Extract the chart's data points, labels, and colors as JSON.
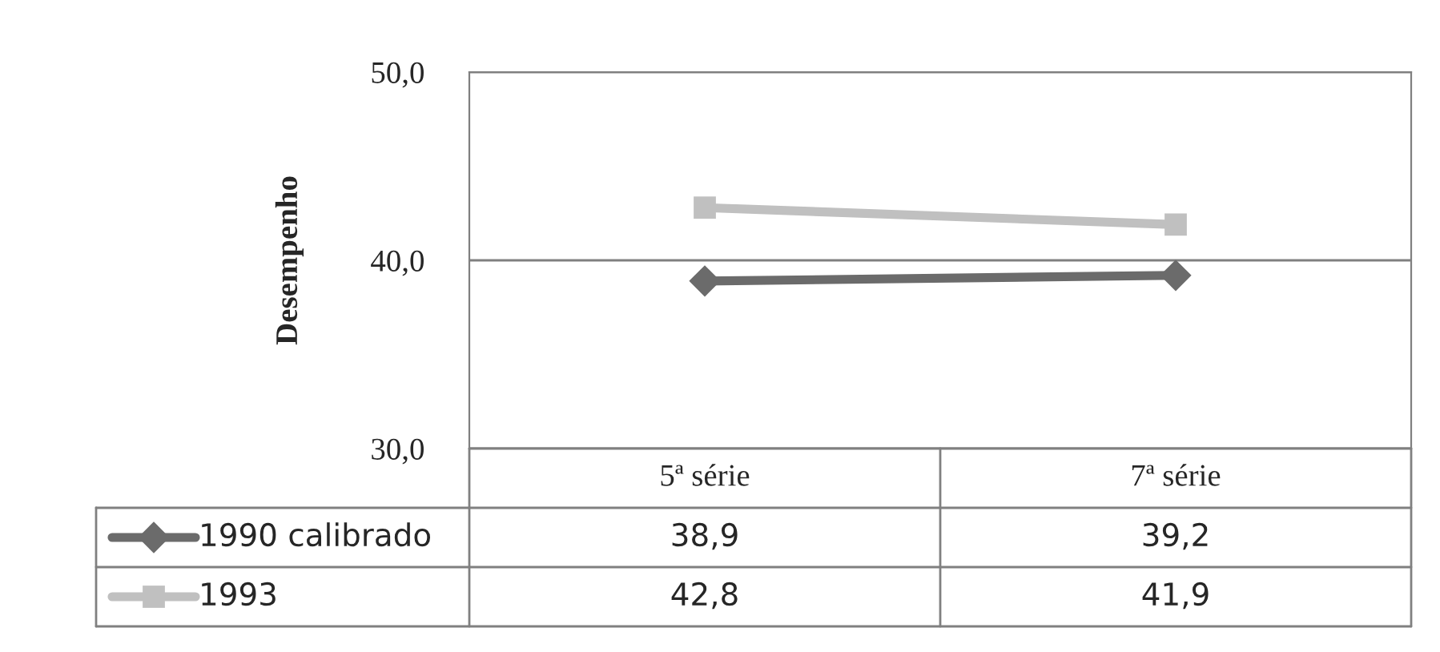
{
  "chart_data": {
    "type": "line",
    "ylabel": "Desempenho",
    "categories": [
      "5ª série",
      "7ª série"
    ],
    "series": [
      {
        "name": "1990 calibrado",
        "color": "#6b6b6b",
        "marker": "diamond",
        "values": [
          38.9,
          39.2
        ],
        "value_labels": [
          "38,9",
          "39,2"
        ]
      },
      {
        "name": "1993",
        "color": "#c0c0c0",
        "marker": "square",
        "values": [
          42.8,
          41.9
        ],
        "value_labels": [
          "42,8",
          "41,9"
        ]
      }
    ],
    "ylim": [
      30,
      50
    ],
    "yticks": [
      {
        "value": 30,
        "label": "30,0"
      },
      {
        "value": 40,
        "label": "40,0"
      },
      {
        "value": 50,
        "label": "50,0"
      }
    ],
    "grid": "y",
    "legend": "bottom",
    "line_style": "solid"
  }
}
